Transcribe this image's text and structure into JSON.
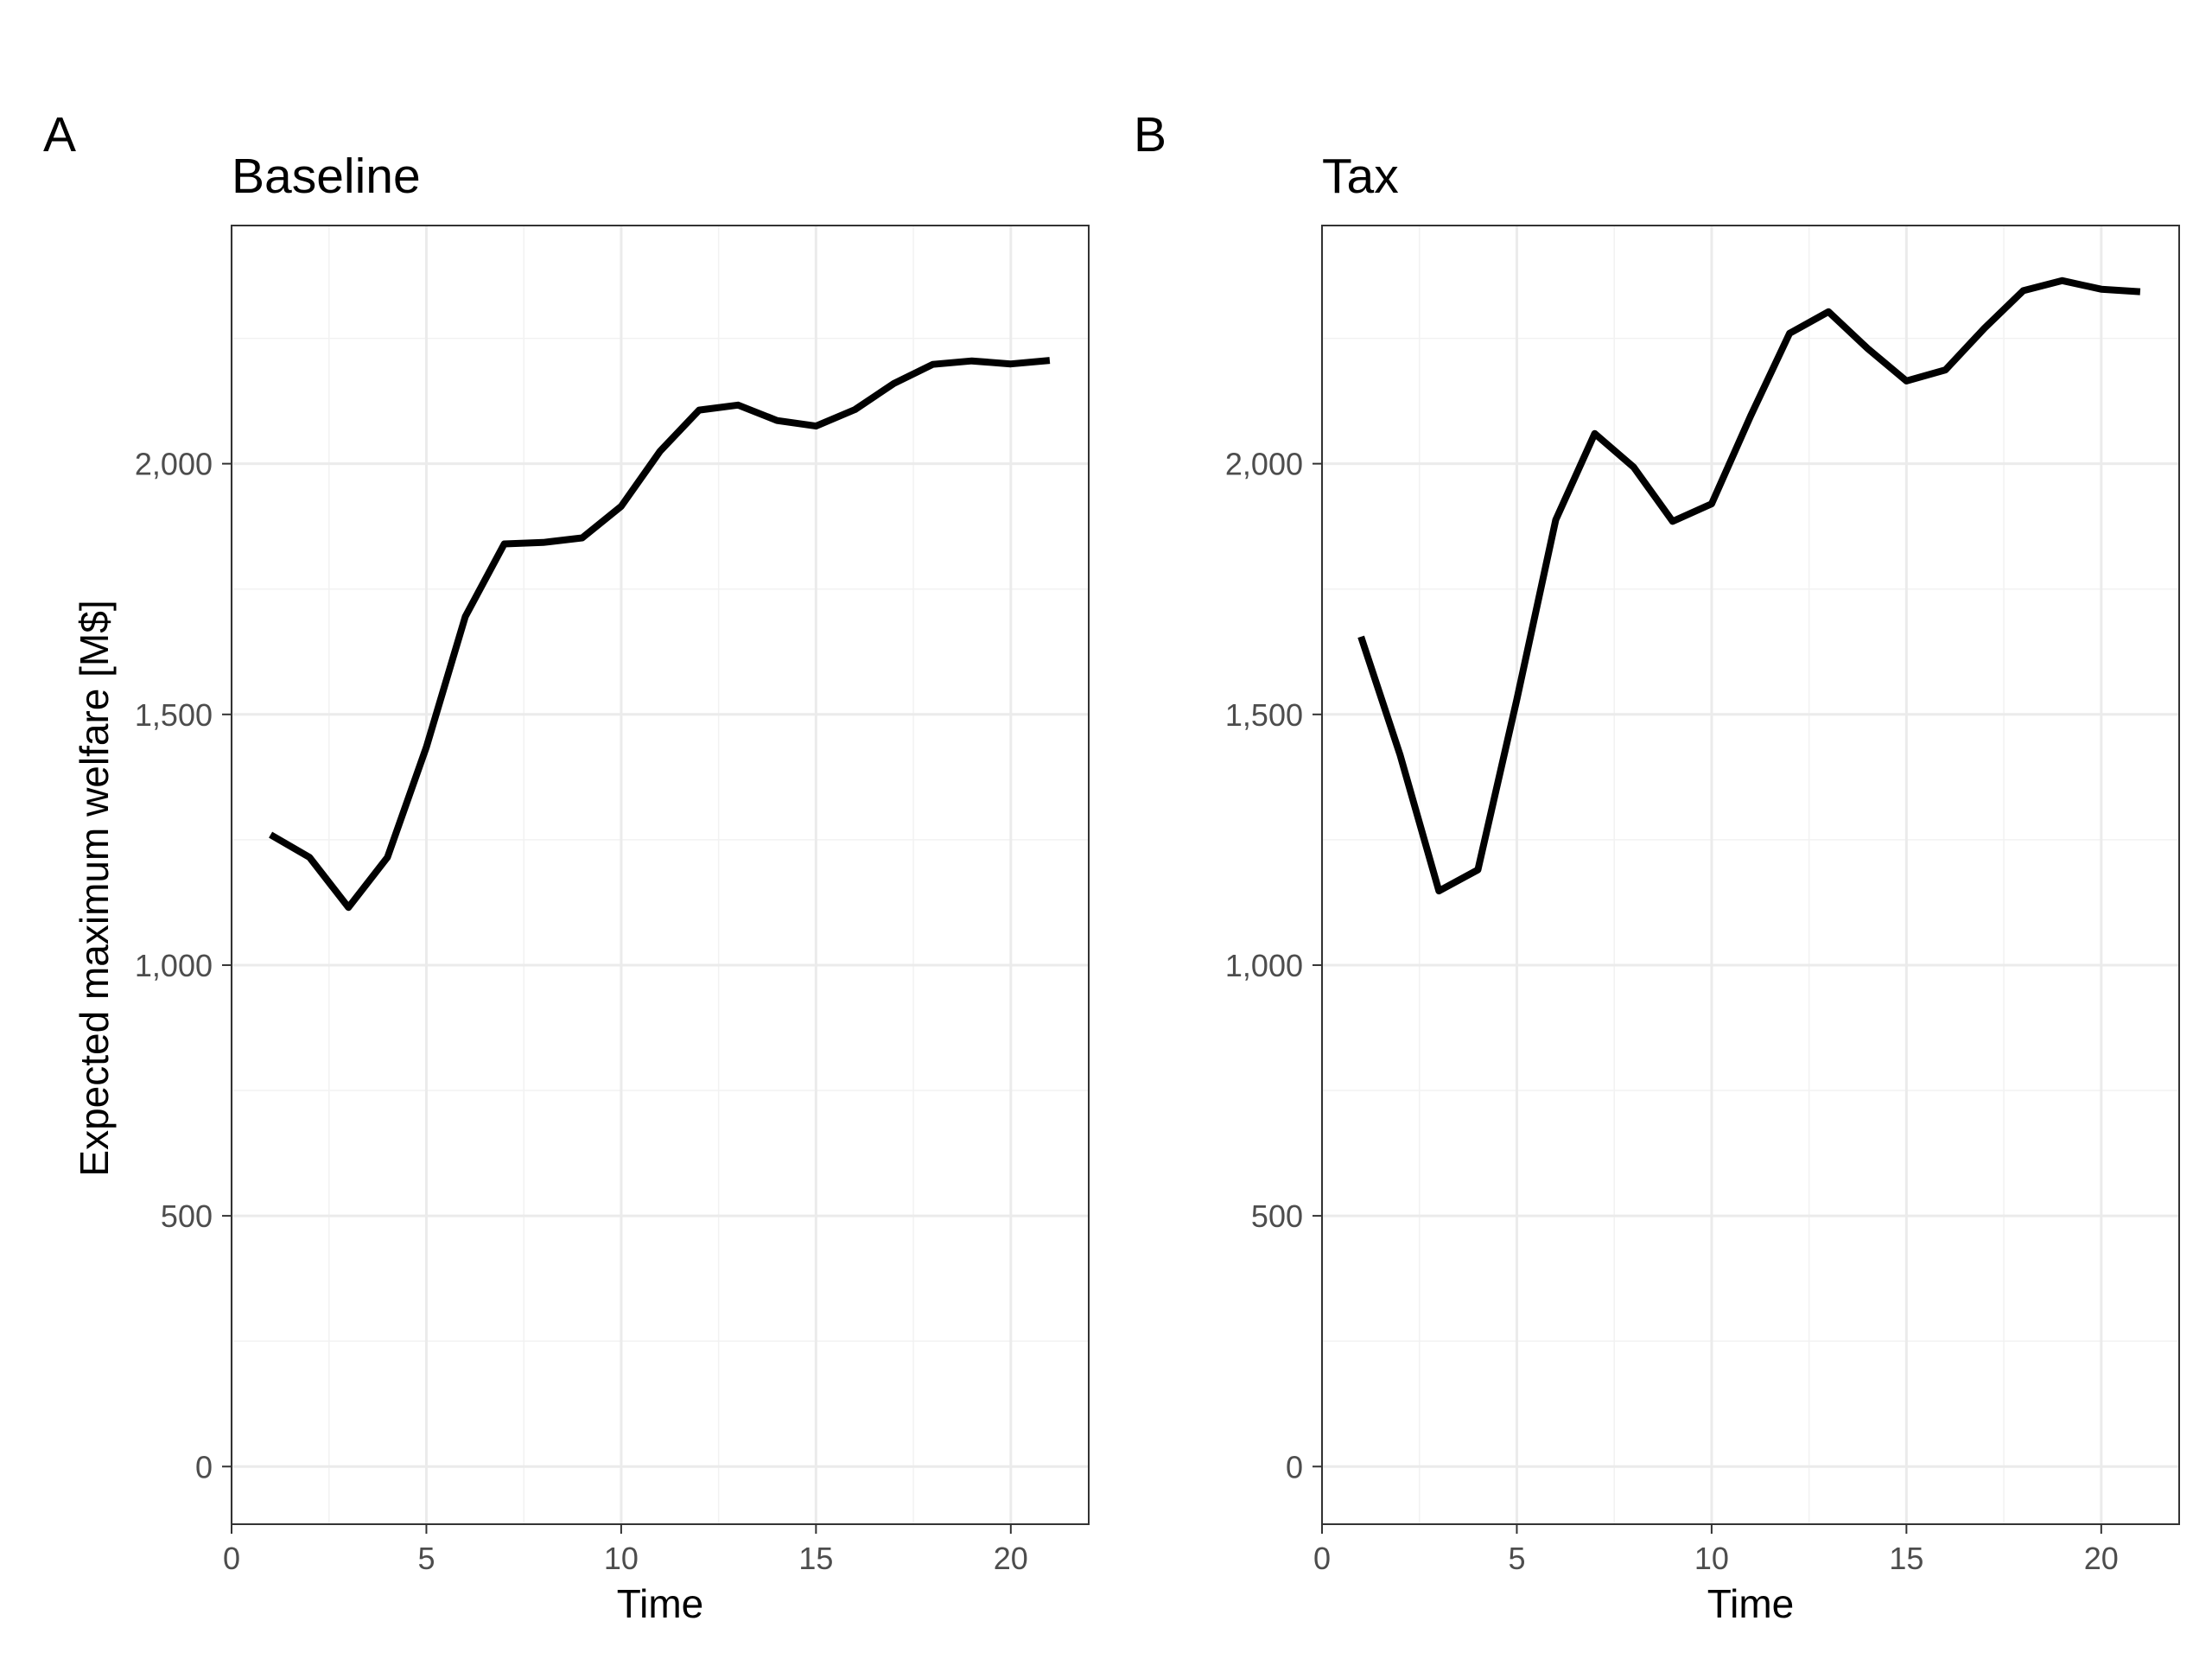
{
  "figure": {
    "y_axis_label": "Expected maximum welfare [M$]"
  },
  "chart_data": [
    {
      "type": "line",
      "tag": "A",
      "title": "Baseline",
      "xlabel": "Time",
      "ylabel": "Expected maximum welfare [M$]",
      "xlim": [
        0,
        22
      ],
      "ylim": [
        -115,
        2475
      ],
      "x_ticks": [
        0,
        5,
        10,
        15,
        20
      ],
      "x_tick_labels": [
        "0",
        "5",
        "10",
        "15",
        "20"
      ],
      "y_ticks": [
        0,
        500,
        1000,
        1500,
        2000
      ],
      "y_tick_labels": [
        "0",
        "500",
        "1,000",
        "1,500",
        "2,000"
      ],
      "grid": true,
      "series": [
        {
          "color": "#000000",
          "x": [
            1,
            2,
            3,
            4,
            5,
            6,
            7,
            8,
            9,
            10,
            11,
            12,
            13,
            14,
            15,
            16,
            17,
            18,
            19,
            20,
            21
          ],
          "y": [
            1260,
            1215,
            1115,
            1215,
            1435,
            1695,
            1840,
            1843,
            1852,
            1915,
            2025,
            2107,
            2117,
            2086,
            2075,
            2108,
            2160,
            2198,
            2205,
            2199,
            2206
          ]
        }
      ]
    },
    {
      "type": "line",
      "tag": "B",
      "title": "Tax",
      "xlabel": "Time",
      "ylabel": "",
      "xlim": [
        0,
        22
      ],
      "ylim": [
        -115,
        2475
      ],
      "x_ticks": [
        0,
        5,
        10,
        15,
        20
      ],
      "x_tick_labels": [
        "0",
        "5",
        "10",
        "15",
        "20"
      ],
      "y_ticks": [
        0,
        500,
        1000,
        1500,
        2000
      ],
      "y_tick_labels": [
        "0",
        "500",
        "1,000",
        "1,500",
        "2,000"
      ],
      "grid": true,
      "series": [
        {
          "color": "#000000",
          "x": [
            1,
            2,
            3,
            4,
            5,
            6,
            7,
            8,
            9,
            10,
            11,
            12,
            13,
            14,
            15,
            16,
            17,
            18,
            19,
            20,
            21
          ],
          "y": [
            1655,
            1420,
            1148,
            1190,
            1530,
            1888,
            2060,
            1993,
            1885,
            1920,
            2095,
            2260,
            2303,
            2230,
            2165,
            2187,
            2270,
            2345,
            2365,
            2348,
            2343
          ]
        }
      ]
    }
  ]
}
